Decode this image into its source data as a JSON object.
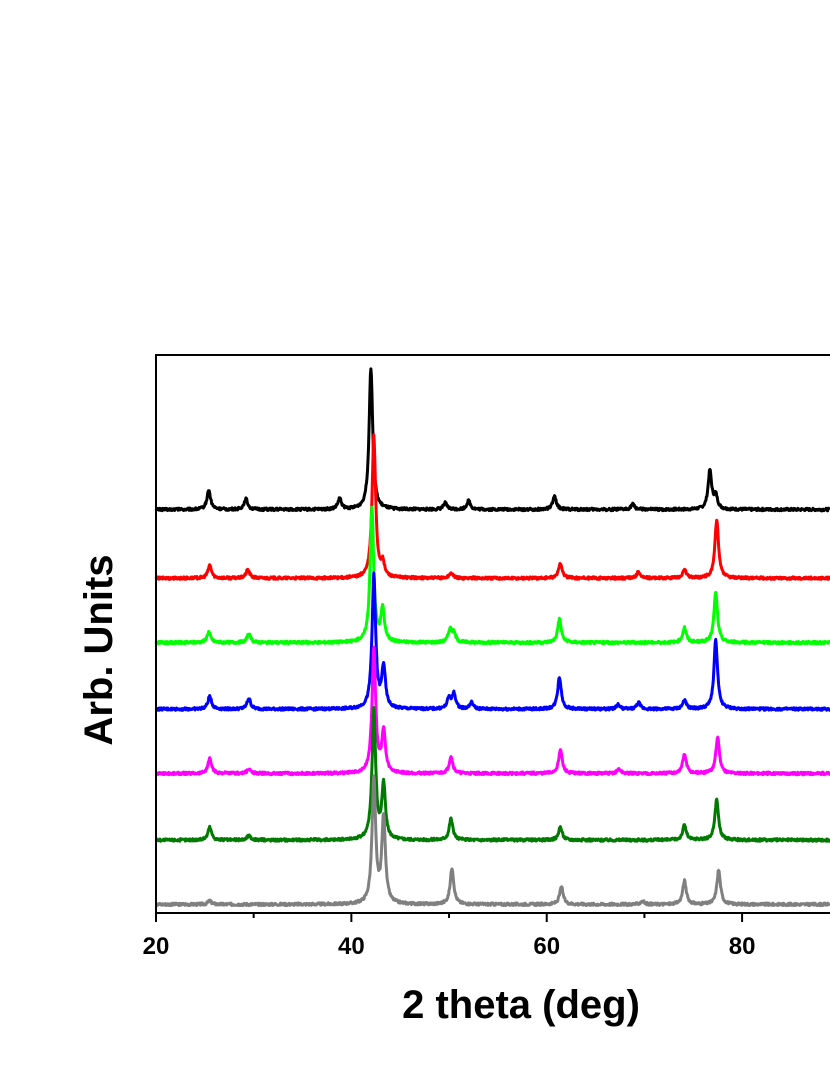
{
  "chart_data": {
    "type": "line",
    "title": "",
    "xlabel": "2 theta (deg)",
    "ylabel": "Arb. Units",
    "xlim": [
      20,
      89
    ],
    "x_ticks": [
      20,
      40,
      60,
      80
    ],
    "y_ticks_shown": false,
    "grid": false,
    "legend": "none",
    "series": [
      {
        "color": "#000000",
        "baseline": 9.4,
        "peaks": [
          [
            25.4,
            0.45
          ],
          [
            29.2,
            0.25
          ],
          [
            38.8,
            0.25
          ],
          [
            42.0,
            3.3
          ],
          [
            49.6,
            0.15
          ],
          [
            52.0,
            0.2
          ],
          [
            60.8,
            0.3
          ],
          [
            68.8,
            0.12
          ],
          [
            76.7,
            0.9
          ],
          [
            77.3,
            0.3
          ]
        ]
      },
      {
        "color": "#ff0000",
        "baseline": 7.8,
        "peaks": [
          [
            25.5,
            0.3
          ],
          [
            29.4,
            0.2
          ],
          [
            42.3,
            3.3
          ],
          [
            43.2,
            0.3
          ],
          [
            50.2,
            0.12
          ],
          [
            61.4,
            0.35
          ],
          [
            69.4,
            0.15
          ],
          [
            74.1,
            0.2
          ],
          [
            77.4,
            1.35
          ]
        ]
      },
      {
        "color": "#00ff00",
        "baseline": 6.3,
        "peaks": [
          [
            25.4,
            0.25
          ],
          [
            29.5,
            0.2
          ],
          [
            42.1,
            3.1
          ],
          [
            43.2,
            0.75
          ],
          [
            50.1,
            0.3
          ],
          [
            50.5,
            0.2
          ],
          [
            61.3,
            0.55
          ],
          [
            74.1,
            0.35
          ],
          [
            77.3,
            1.15
          ]
        ]
      },
      {
        "color": "#0000ff",
        "baseline": 4.75,
        "peaks": [
          [
            25.5,
            0.3
          ],
          [
            29.5,
            0.25
          ],
          [
            42.3,
            3.1
          ],
          [
            43.3,
            0.95
          ],
          [
            50.0,
            0.25
          ],
          [
            50.5,
            0.35
          ],
          [
            52.3,
            0.15
          ],
          [
            61.3,
            0.75
          ],
          [
            67.3,
            0.1
          ],
          [
            69.4,
            0.15
          ],
          [
            74.1,
            0.2
          ],
          [
            77.3,
            1.6
          ]
        ]
      },
      {
        "color": "#ff00ff",
        "baseline": 3.25,
        "peaks": [
          [
            25.5,
            0.35
          ],
          [
            29.5,
            0.1
          ],
          [
            42.3,
            2.9
          ],
          [
            43.3,
            0.95
          ],
          [
            50.2,
            0.4
          ],
          [
            61.4,
            0.55
          ],
          [
            67.4,
            0.1
          ],
          [
            74.1,
            0.45
          ],
          [
            77.5,
            0.85
          ]
        ]
      },
      {
        "color": "#007a00",
        "baseline": 1.7,
        "peaks": [
          [
            25.5,
            0.3
          ],
          [
            29.5,
            0.1
          ],
          [
            42.3,
            3.0
          ],
          [
            43.3,
            1.25
          ],
          [
            50.2,
            0.5
          ],
          [
            61.4,
            0.3
          ],
          [
            74.1,
            0.35
          ],
          [
            77.4,
            0.95
          ]
        ]
      },
      {
        "color": "#808080",
        "baseline": 0.2,
        "peaks": [
          [
            25.5,
            0.08
          ],
          [
            42.3,
            2.9
          ],
          [
            43.3,
            2.0
          ],
          [
            50.3,
            0.85
          ],
          [
            61.5,
            0.4
          ],
          [
            69.8,
            0.08
          ],
          [
            74.1,
            0.55
          ],
          [
            77.6,
            0.8
          ]
        ]
      }
    ],
    "ylim": [
      0,
      13
    ]
  }
}
